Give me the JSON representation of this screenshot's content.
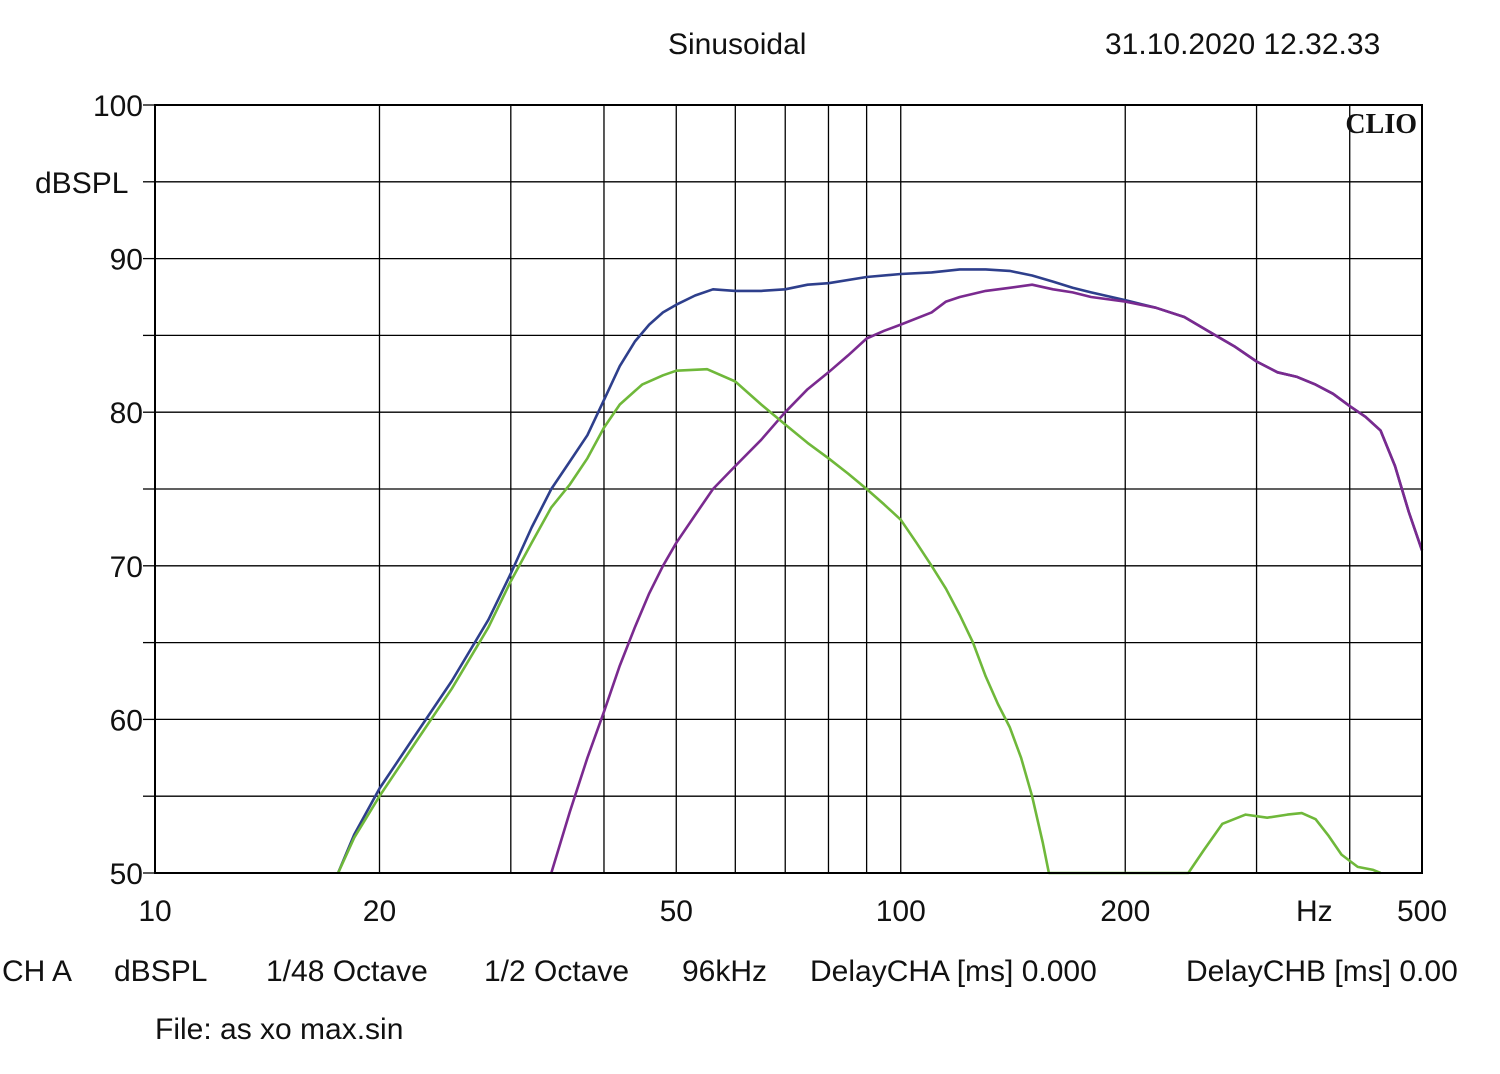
{
  "header": {
    "title": "Sinusoidal",
    "timestamp": "31.10.2020 12.32.33"
  },
  "brand": "CLIO",
  "footer": {
    "items": [
      "CH A",
      "dBSPL",
      "1/48 Octave",
      "1/2 Octave",
      "96kHz",
      "DelayCHA [ms] 0.000",
      "DelayCHB [ms] 0.00"
    ],
    "file": "File: as xo max.sin"
  },
  "chart_data": {
    "type": "line",
    "xscale": "log",
    "xlim": [
      10,
      500
    ],
    "ylim": [
      50,
      100
    ],
    "ylabel": "dBSPL",
    "xunit": "Hz",
    "grid": true,
    "x_tick_labels": [
      {
        "value": 10,
        "label": "10"
      },
      {
        "value": 20,
        "label": "20"
      },
      {
        "value": 50,
        "label": "50"
      },
      {
        "value": 100,
        "label": "100"
      },
      {
        "value": 200,
        "label": "200"
      },
      {
        "value": 500,
        "label": "500"
      }
    ],
    "y_tick_labels": [
      {
        "value": 100,
        "label": "100"
      },
      {
        "value": 90,
        "label": "90"
      },
      {
        "value": 80,
        "label": "80"
      },
      {
        "value": 70,
        "label": "70"
      },
      {
        "value": 60,
        "label": "60"
      },
      {
        "value": 50,
        "label": "50"
      }
    ],
    "series": [
      {
        "color": "#2e3f8c",
        "points": [
          [
            17.6,
            50
          ],
          [
            18.5,
            52.5
          ],
          [
            20,
            55.5
          ],
          [
            22,
            58.5
          ],
          [
            25,
            62.5
          ],
          [
            28,
            66.5
          ],
          [
            30,
            69.5
          ],
          [
            32,
            72.5
          ],
          [
            34,
            75
          ],
          [
            36,
            76.8
          ],
          [
            38,
            78.5
          ],
          [
            40,
            80.8
          ],
          [
            42,
            83
          ],
          [
            44,
            84.6
          ],
          [
            46,
            85.7
          ],
          [
            48,
            86.5
          ],
          [
            50,
            87
          ],
          [
            53,
            87.6
          ],
          [
            56,
            88
          ],
          [
            60,
            87.9
          ],
          [
            65,
            87.9
          ],
          [
            70,
            88
          ],
          [
            75,
            88.3
          ],
          [
            80,
            88.4
          ],
          [
            90,
            88.8
          ],
          [
            100,
            89
          ],
          [
            110,
            89.1
          ],
          [
            120,
            89.3
          ],
          [
            130,
            89.3
          ],
          [
            140,
            89.2
          ],
          [
            150,
            88.9
          ],
          [
            160,
            88.5
          ],
          [
            170,
            88.1
          ],
          [
            180,
            87.8
          ],
          [
            200,
            87.3
          ],
          [
            220,
            86.8
          ],
          [
            240,
            86.2
          ],
          [
            260,
            85.2
          ],
          [
            280,
            84.3
          ],
          [
            300,
            83.3
          ],
          [
            320,
            82.6
          ],
          [
            340,
            82.3
          ],
          [
            360,
            81.8
          ],
          [
            380,
            81.2
          ],
          [
            400,
            80.4
          ],
          [
            420,
            79.7
          ],
          [
            440,
            78.8
          ],
          [
            460,
            76.5
          ],
          [
            480,
            73.5
          ],
          [
            500,
            71
          ]
        ]
      },
      {
        "color": "#7a2a8f",
        "points": [
          [
            34,
            50
          ],
          [
            36,
            54
          ],
          [
            38,
            57.5
          ],
          [
            40,
            60.5
          ],
          [
            42,
            63.5
          ],
          [
            44,
            66
          ],
          [
            46,
            68.2
          ],
          [
            48,
            70
          ],
          [
            50,
            71.5
          ],
          [
            53,
            73.3
          ],
          [
            56,
            75
          ],
          [
            60,
            76.5
          ],
          [
            65,
            78.2
          ],
          [
            70,
            80
          ],
          [
            75,
            81.5
          ],
          [
            80,
            82.6
          ],
          [
            85,
            83.7
          ],
          [
            90,
            84.8
          ],
          [
            95,
            85.3
          ],
          [
            100,
            85.7
          ],
          [
            110,
            86.5
          ],
          [
            115,
            87.2
          ],
          [
            120,
            87.5
          ],
          [
            130,
            87.9
          ],
          [
            140,
            88.1
          ],
          [
            150,
            88.3
          ],
          [
            160,
            88
          ],
          [
            170,
            87.8
          ],
          [
            180,
            87.5
          ],
          [
            200,
            87.2
          ],
          [
            220,
            86.8
          ],
          [
            240,
            86.2
          ],
          [
            260,
            85.2
          ],
          [
            280,
            84.3
          ],
          [
            300,
            83.3
          ],
          [
            320,
            82.6
          ],
          [
            340,
            82.3
          ],
          [
            360,
            81.8
          ],
          [
            380,
            81.2
          ],
          [
            400,
            80.4
          ],
          [
            420,
            79.7
          ],
          [
            440,
            78.8
          ],
          [
            460,
            76.5
          ],
          [
            480,
            73.5
          ],
          [
            500,
            71
          ]
        ]
      },
      {
        "color": "#6fb83a",
        "points": [
          [
            17.6,
            50
          ],
          [
            18.5,
            52.3
          ],
          [
            20,
            55
          ],
          [
            22,
            58
          ],
          [
            25,
            62
          ],
          [
            28,
            66
          ],
          [
            30,
            69
          ],
          [
            32,
            71.5
          ],
          [
            34,
            73.8
          ],
          [
            36,
            75.3
          ],
          [
            38,
            77
          ],
          [
            40,
            79
          ],
          [
            42,
            80.5
          ],
          [
            45,
            81.8
          ],
          [
            48,
            82.4
          ],
          [
            50,
            82.7
          ],
          [
            55,
            82.8
          ],
          [
            60,
            82
          ],
          [
            65,
            80.5
          ],
          [
            70,
            79.2
          ],
          [
            75,
            78
          ],
          [
            80,
            77
          ],
          [
            85,
            76
          ],
          [
            90,
            75
          ],
          [
            95,
            74
          ],
          [
            100,
            73
          ],
          [
            105,
            71.5
          ],
          [
            110,
            70
          ],
          [
            115,
            68.5
          ],
          [
            120,
            66.8
          ],
          [
            125,
            65
          ],
          [
            130,
            62.8
          ],
          [
            135,
            61
          ],
          [
            140,
            59.5
          ],
          [
            145,
            57.5
          ],
          [
            150,
            55
          ],
          [
            155,
            52
          ],
          [
            158,
            50
          ],
          [
            243,
            50
          ],
          [
            255,
            51.5
          ],
          [
            270,
            53.2
          ],
          [
            290,
            53.8
          ],
          [
            310,
            53.6
          ],
          [
            330,
            53.8
          ],
          [
            345,
            53.9
          ],
          [
            360,
            53.5
          ],
          [
            375,
            52.4
          ],
          [
            390,
            51.2
          ],
          [
            410,
            50.4
          ],
          [
            430,
            50.2
          ],
          [
            440,
            50
          ]
        ]
      }
    ]
  }
}
